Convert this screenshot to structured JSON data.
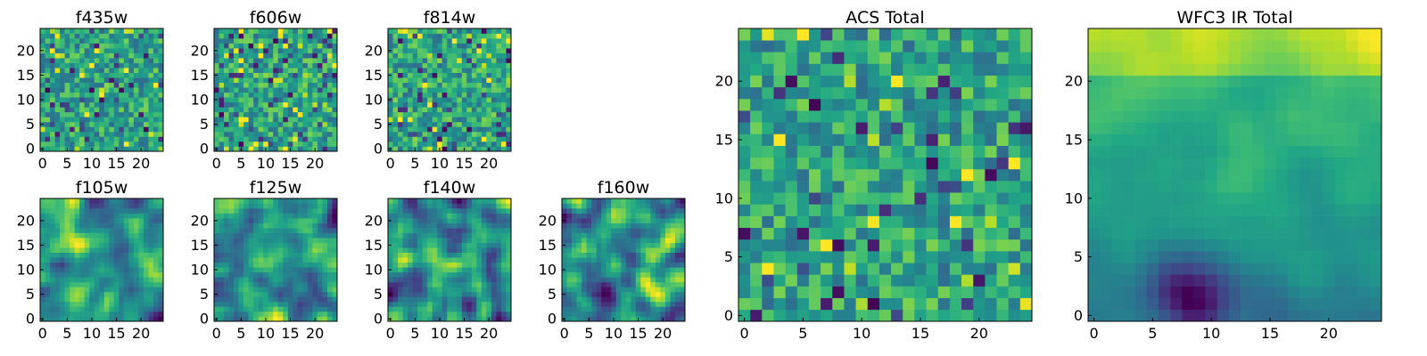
{
  "figure": {
    "description_text": ""
  },
  "chart_data": [
    {
      "type": "heatmap",
      "title": "f435w",
      "colormap": "viridis",
      "grid_size": [
        25,
        25
      ],
      "xlim": [
        0,
        24
      ],
      "ylim": [
        0,
        24
      ],
      "xticks": [
        0,
        5,
        10,
        15,
        20
      ],
      "yticks": [
        0,
        5,
        10,
        15,
        20
      ],
      "texture": "noise",
      "seed": 11
    },
    {
      "type": "heatmap",
      "title": "f606w",
      "colormap": "viridis",
      "grid_size": [
        25,
        25
      ],
      "xlim": [
        0,
        24
      ],
      "ylim": [
        0,
        24
      ],
      "xticks": [
        0,
        5,
        10,
        15,
        20
      ],
      "yticks": [
        0,
        5,
        10,
        15,
        20
      ],
      "texture": "noise",
      "seed": 23
    },
    {
      "type": "heatmap",
      "title": "f814w",
      "colormap": "viridis",
      "grid_size": [
        25,
        25
      ],
      "xlim": [
        0,
        24
      ],
      "ylim": [
        0,
        24
      ],
      "xticks": [
        0,
        5,
        10,
        15,
        20
      ],
      "yticks": [
        0,
        5,
        10,
        15,
        20
      ],
      "texture": "noise",
      "seed": 37
    },
    {
      "type": "heatmap",
      "title": "f105w",
      "colormap": "viridis",
      "grid_size": [
        25,
        25
      ],
      "xlim": [
        0,
        24
      ],
      "ylim": [
        0,
        24
      ],
      "xticks": [
        0,
        5,
        10,
        15,
        20
      ],
      "yticks": [
        0,
        5,
        10,
        15,
        20
      ],
      "texture": "smooth",
      "seed": 41
    },
    {
      "type": "heatmap",
      "title": "f125w",
      "colormap": "viridis",
      "grid_size": [
        25,
        25
      ],
      "xlim": [
        0,
        24
      ],
      "ylim": [
        0,
        24
      ],
      "xticks": [
        0,
        5,
        10,
        15,
        20
      ],
      "yticks": [
        0,
        5,
        10,
        15,
        20
      ],
      "texture": "smooth",
      "seed": 53
    },
    {
      "type": "heatmap",
      "title": "f140w",
      "colormap": "viridis",
      "grid_size": [
        25,
        25
      ],
      "xlim": [
        0,
        24
      ],
      "ylim": [
        0,
        24
      ],
      "xticks": [
        0,
        5,
        10,
        15,
        20
      ],
      "yticks": [
        0,
        5,
        10,
        15,
        20
      ],
      "texture": "smooth",
      "seed": 67
    },
    {
      "type": "heatmap",
      "title": "f160w",
      "colormap": "viridis",
      "grid_size": [
        25,
        25
      ],
      "xlim": [
        0,
        24
      ],
      "ylim": [
        0,
        24
      ],
      "xticks": [
        0,
        5,
        10,
        15,
        20
      ],
      "yticks": [
        0,
        5,
        10,
        15,
        20
      ],
      "texture": "smooth",
      "seed": 79
    },
    {
      "type": "heatmap",
      "title": "ACS Total",
      "colormap": "viridis",
      "grid_size": [
        25,
        25
      ],
      "xlim": [
        0,
        24
      ],
      "ylim": [
        0,
        24
      ],
      "xticks": [
        0,
        5,
        10,
        15,
        20
      ],
      "yticks": [
        0,
        5,
        10,
        15,
        20
      ],
      "texture": "noise",
      "seed": 97
    },
    {
      "type": "heatmap",
      "title": "WFC3 IR Total",
      "colormap": "viridis",
      "grid_size": [
        25,
        25
      ],
      "xlim": [
        0,
        24
      ],
      "ylim": [
        0,
        24
      ],
      "xticks": [
        0,
        5,
        10,
        15,
        20
      ],
      "yticks": [
        0,
        5,
        10,
        15,
        20
      ],
      "texture": "gradient",
      "seed": 101
    }
  ]
}
